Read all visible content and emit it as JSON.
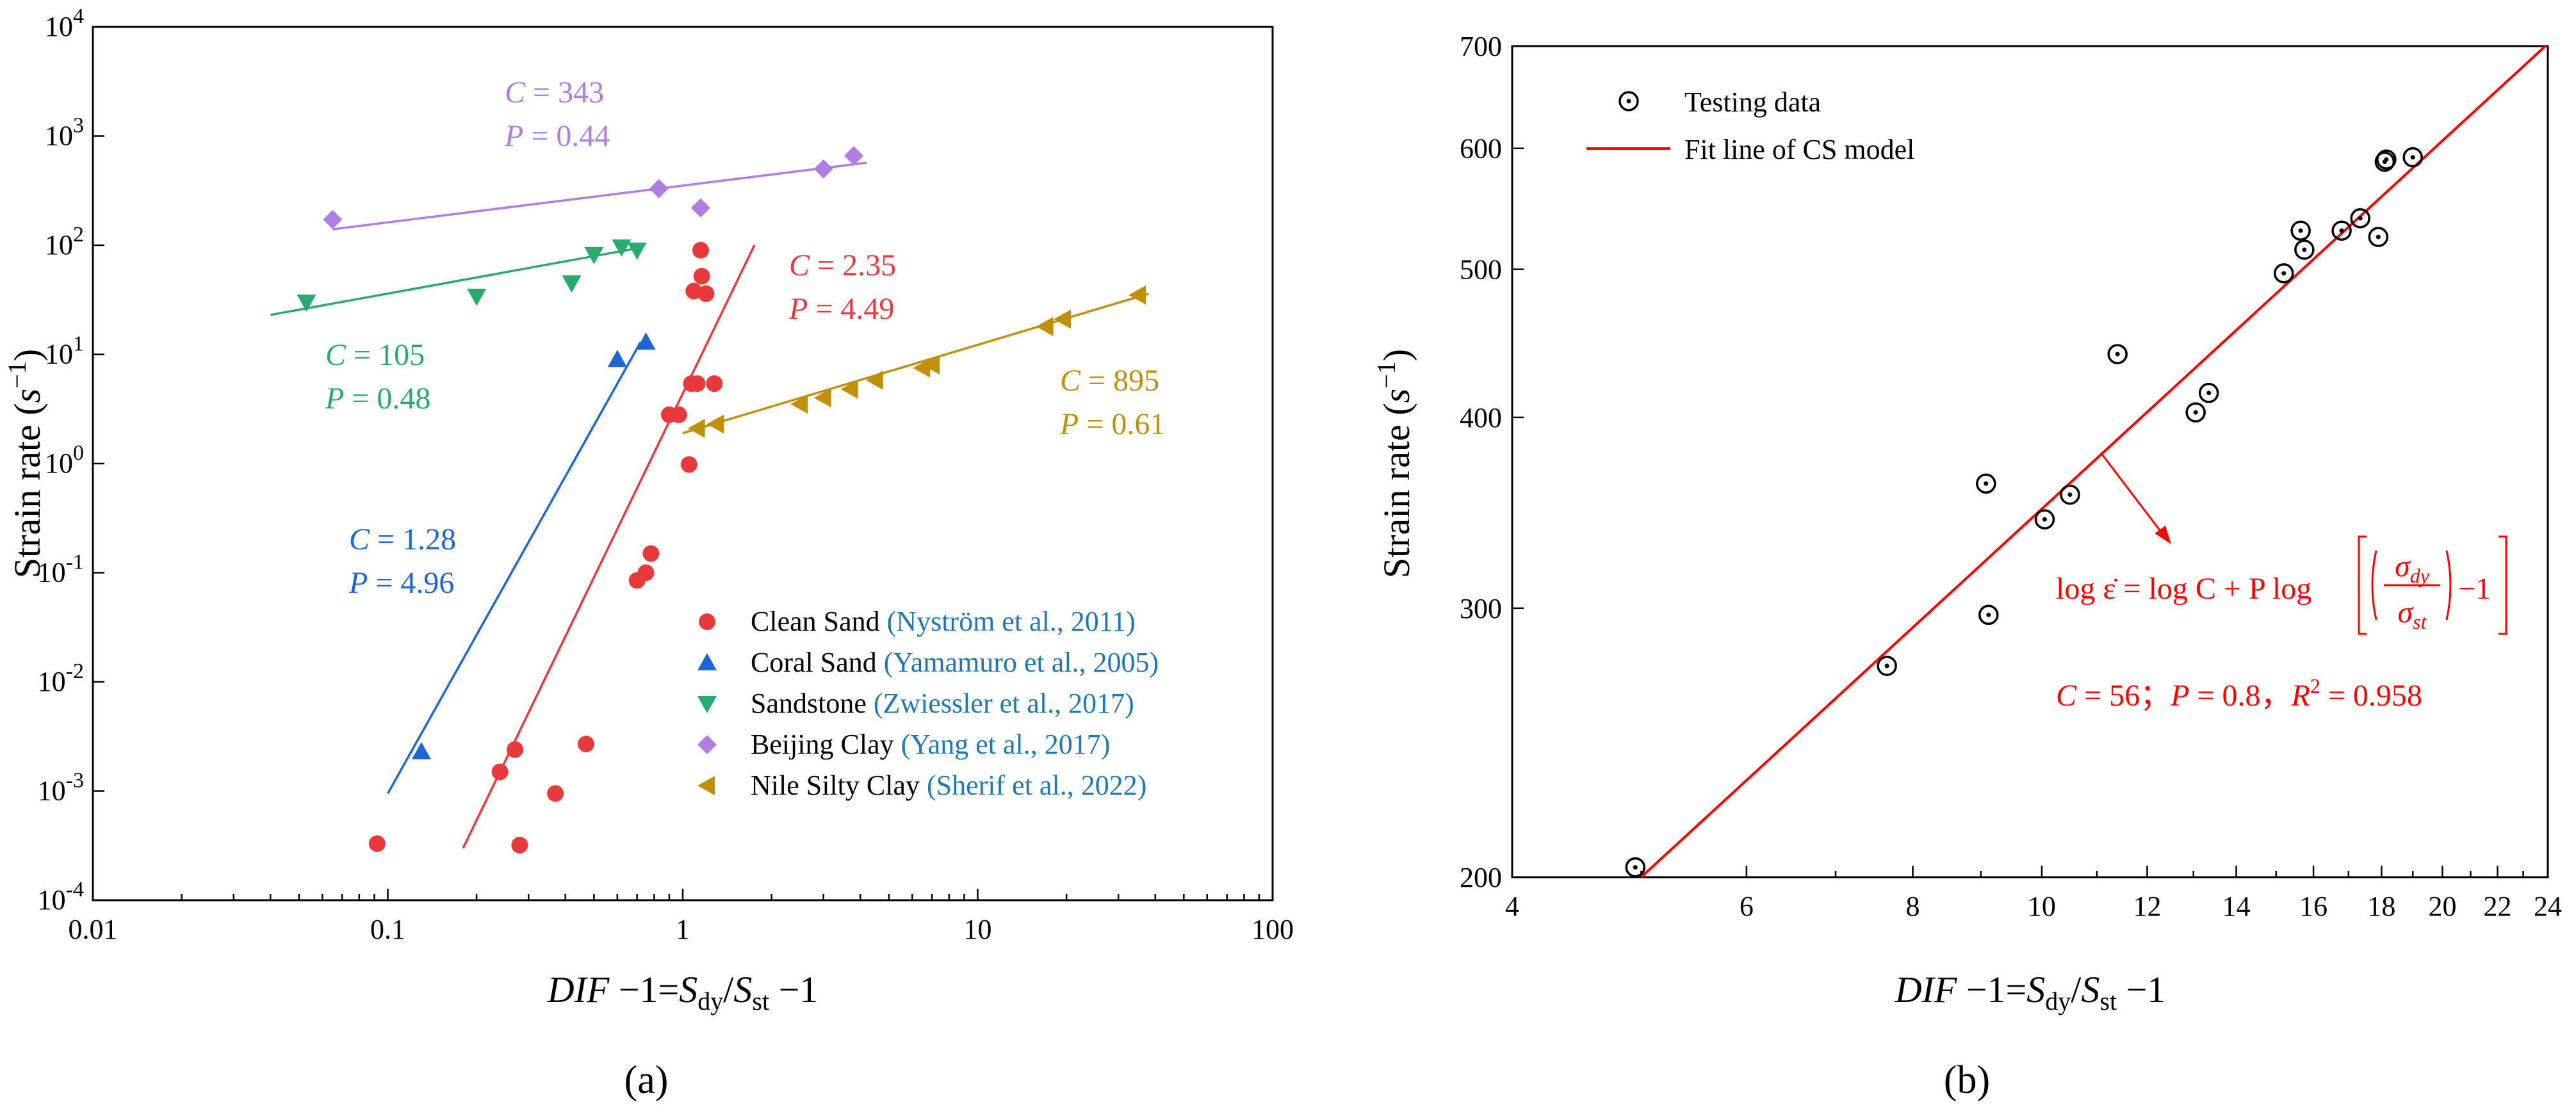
{
  "chart_data": [
    {
      "type": "scatter",
      "panel_label": "(a)",
      "xlabel": "DIF −1=S_dy/S_st −1",
      "ylabel": "Strain rate (s^−1)",
      "xscale": "log",
      "yscale": "log",
      "xlim": [
        0.01,
        100
      ],
      "ylim": [
        0.0001,
        10000
      ],
      "x_ticks": [
        "0.01",
        "0.1",
        "1",
        "10",
        "100"
      ],
      "y_ticks": [
        "10-4",
        "10-3",
        "10-2",
        "10-1",
        "100",
        "101",
        "102",
        "103",
        "104"
      ],
      "series": [
        {
          "name": "Clean Sand",
          "citation": "(Nyström et al., 2011)",
          "color": "#e8393d",
          "marker": "circle",
          "points": [
            [
              0.092,
              0.00033
            ],
            [
              0.24,
              0.0015
            ],
            [
              0.27,
              0.0024
            ],
            [
              0.28,
              0.00032
            ],
            [
              0.37,
              0.00095
            ],
            [
              0.47,
              0.0027
            ],
            [
              0.7,
              0.085
            ],
            [
              0.75,
              0.1
            ],
            [
              0.78,
              0.15
            ],
            [
              0.9,
              2.8
            ],
            [
              0.97,
              2.8
            ],
            [
              1.05,
              0.98
            ],
            [
              1.07,
              5.4
            ],
            [
              1.09,
              38
            ],
            [
              1.12,
              5.4
            ],
            [
              1.15,
              90
            ],
            [
              1.16,
              52
            ],
            [
              1.2,
              36
            ],
            [
              1.28,
              5.4
            ]
          ],
          "fit": {
            "x": [
              0.18,
              1.75
            ],
            "y": [
              0.0003,
              100
            ]
          },
          "annotation": {
            "C": "C = 2.35",
            "P": "P = 4.49"
          }
        },
        {
          "name": "Coral Sand",
          "citation": "(Yamamuro et al., 2005)",
          "color": "#1e66d8",
          "marker": "triangle-up",
          "points": [
            [
              0.13,
              0.0023
            ],
            [
              0.6,
              9
            ],
            [
              0.75,
              13
            ]
          ],
          "fit": {
            "x": [
              0.1,
              0.72
            ],
            "y": [
              0.00095,
              13
            ]
          },
          "annotation": {
            "C": "C = 1.28",
            "P": "P = 4.96"
          }
        },
        {
          "name": "Sandstone",
          "citation": "(Zwiessler et al., 2017)",
          "color": "#2aaa6e",
          "marker": "triangle-down",
          "points": [
            [
              0.053,
              30
            ],
            [
              0.2,
              34
            ],
            [
              0.42,
              45
            ],
            [
              0.5,
              82
            ],
            [
              0.62,
              96
            ],
            [
              0.7,
              90
            ]
          ],
          "fit": {
            "x": [
              0.04,
              0.72
            ],
            "y": [
              23,
              95
            ]
          },
          "annotation": {
            "C": "C = 105",
            "P": "P = 0.48"
          }
        },
        {
          "name": "Beijing Clay",
          "citation": "(Yang et al., 2017)",
          "color": "#b07de0",
          "marker": "diamond",
          "points": [
            [
              0.065,
              172
            ],
            [
              0.83,
              330
            ],
            [
              1.15,
              220
            ],
            [
              3.0,
              500
            ],
            [
              3.8,
              660
            ]
          ],
          "fit": {
            "x": [
              0.065,
              4.2
            ],
            "y": [
              140,
              570
            ]
          },
          "annotation": {
            "C": "C = 343",
            "P": "P = 0.44"
          }
        },
        {
          "name": "Nile Silty Clay",
          "citation": "(Sherif et al., 2022)",
          "color": "#c0900a",
          "marker": "triangle-left",
          "points": [
            [
              1.12,
              2.1
            ],
            [
              1.3,
              2.3
            ],
            [
              2.5,
              3.5
            ],
            [
              3.0,
              4.0
            ],
            [
              3.7,
              4.8
            ],
            [
              4.5,
              5.8
            ],
            [
              6.5,
              7.5
            ],
            [
              7.0,
              8.0
            ],
            [
              17.0,
              18.0
            ],
            [
              19.5,
              21.0
            ],
            [
              35.0,
              35.0
            ]
          ],
          "fit": {
            "x": [
              1.0,
              38
            ],
            "y": [
              1.9,
              36
            ]
          },
          "annotation": {
            "C": "C = 895",
            "P": "P = 0.61"
          }
        }
      ]
    },
    {
      "type": "scatter",
      "panel_label": "(b)",
      "xlabel": "DIF −1=S_dy/S_st −1",
      "ylabel": "Strain rate (s^−1)",
      "xscale": "log",
      "yscale": "log",
      "xlim": [
        4,
        24
      ],
      "ylim": [
        200,
        700
      ],
      "x_ticks": [
        "4",
        "6",
        "8",
        "10",
        "12",
        "14",
        "16",
        "18",
        "20",
        "22",
        "24"
      ],
      "y_ticks": [
        "200",
        "300",
        "400",
        "500",
        "600",
        "700"
      ],
      "series": [
        {
          "name": "Testing data",
          "marker": "circle-dot",
          "color": "#000000",
          "points": [
            [
              4.95,
              203
            ],
            [
              7.65,
              275
            ],
            [
              9.08,
              362
            ],
            [
              9.12,
              297
            ],
            [
              10.05,
              343
            ],
            [
              10.5,
              356
            ],
            [
              11.4,
              440
            ],
            [
              13.05,
              403
            ],
            [
              13.35,
              415
            ],
            [
              15.2,
              497
            ],
            [
              15.65,
              530
            ],
            [
              15.75,
              515
            ],
            [
              16.8,
              530
            ],
            [
              17.35,
              540
            ],
            [
              17.9,
              525
            ],
            [
              18.1,
              588
            ],
            [
              18.15,
              590
            ],
            [
              19.0,
              592
            ]
          ]
        },
        {
          "name": "Fit line of CS model",
          "type": "line",
          "color": "#ff0000",
          "x": [
            5.0,
            23.9
          ],
          "y": [
            200,
            700
          ]
        }
      ],
      "formula": {
        "left": "log ε̇ = log C + P log",
        "frac_num": "σdy",
        "frac_den": "σst",
        "tail": "−1"
      },
      "parameters": "C = 56；P = 0.8，R2 = 0.958"
    }
  ]
}
